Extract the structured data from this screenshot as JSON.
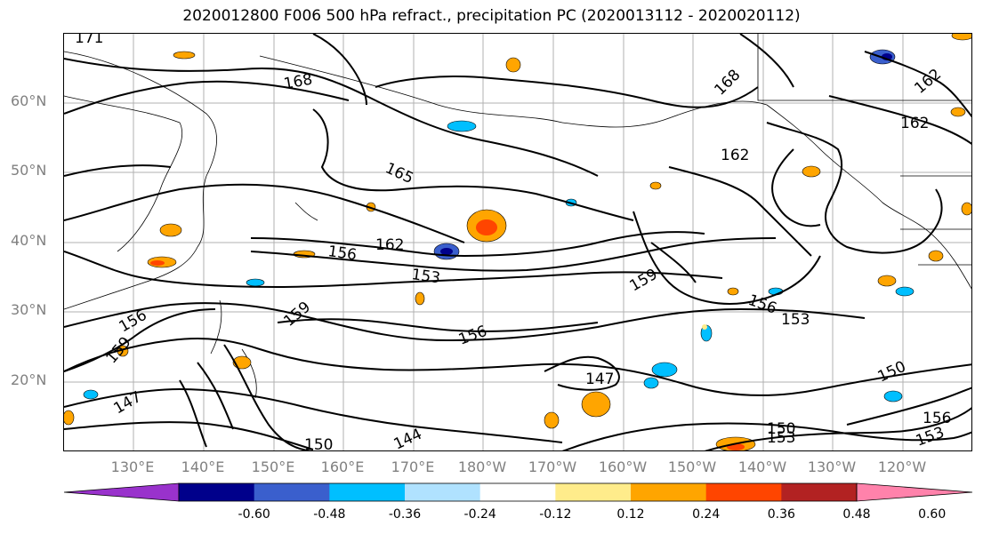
{
  "title": "2020012800 F006 500 hPa refract., precipitation PC (2020013112 - 2020020112)",
  "lat_labels": [
    "60°N",
    "50°N",
    "40°N",
    "30°N",
    "20°N"
  ],
  "lon_labels": [
    "130°E",
    "140°E",
    "150°E",
    "160°E",
    "170°E",
    "180°W",
    "170°W",
    "160°W",
    "150°W",
    "140°W",
    "130°W",
    "120°W"
  ],
  "contour_labels": [
    "171",
    "168",
    "168",
    "165",
    "162",
    "162",
    "162",
    "156",
    "156",
    "156",
    "156",
    "153",
    "153",
    "153",
    "150",
    "150",
    "150",
    "147",
    "147",
    "144",
    "159",
    "159",
    "159",
    "162",
    "156",
    "153"
  ],
  "colorbar": {
    "colors": [
      "#9932cc",
      "#00008b",
      "#3a5fcd",
      "#00bfff",
      "#b0e2ff",
      "#ffffff",
      "#ffec8b",
      "#ffa500",
      "#ff4500",
      "#b22222",
      "#ff82ab"
    ],
    "tick_labels": [
      "-0.60",
      "-0.48",
      "-0.36",
      "-0.24",
      "-0.12",
      "0.12",
      "0.24",
      "0.36",
      "0.48",
      "0.60"
    ]
  }
}
